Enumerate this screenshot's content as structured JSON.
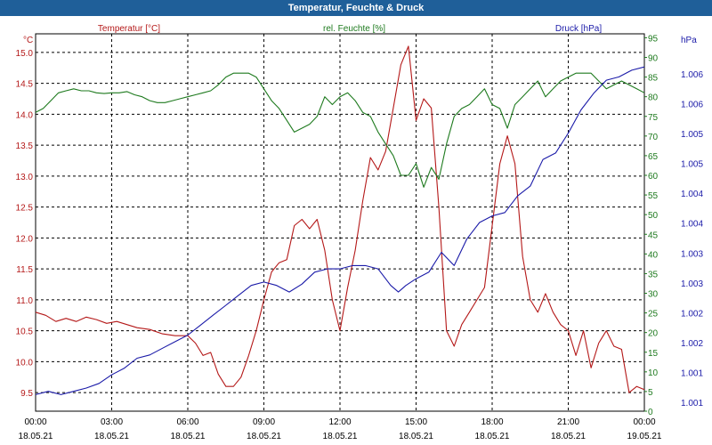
{
  "window": {
    "title": "Temperatur, Feuchte & Druck"
  },
  "colors": {
    "title_bar": "#1f5f99",
    "temperature": "#b41818",
    "humidity": "#1e7a1e",
    "pressure": "#1a1aa8"
  },
  "chart_data": {
    "type": "line",
    "title": "Temperatur, Feuchte & Druck",
    "grid": true,
    "grid_style": "dashed",
    "x_axis": {
      "ticks": [
        {
          "time": "00:00",
          "date": "18.05.21",
          "hours": 0
        },
        {
          "time": "03:00",
          "date": "18.05.21",
          "hours": 3
        },
        {
          "time": "06:00",
          "date": "18.05.21",
          "hours": 6
        },
        {
          "time": "09:00",
          "date": "18.05.21",
          "hours": 9
        },
        {
          "time": "12:00",
          "date": "18.05.21",
          "hours": 12
        },
        {
          "time": "15:00",
          "date": "18.05.21",
          "hours": 15
        },
        {
          "time": "18:00",
          "date": "18.05.21",
          "hours": 18
        },
        {
          "time": "21:00",
          "date": "18.05.21",
          "hours": 21
        },
        {
          "time": "00:00",
          "date": "19.05.21",
          "hours": 24
        }
      ],
      "range": [
        0,
        24
      ]
    },
    "axes": {
      "temperature": {
        "label": "Temperatur [°C]",
        "unit": "°C",
        "range": [
          9.2,
          15.3
        ],
        "ticks": [
          "9.5",
          "10.0",
          "10.5",
          "11.0",
          "11.5",
          "12.0",
          "12.5",
          "13.0",
          "13.5",
          "14.0",
          "14.5",
          "15.0"
        ]
      },
      "humidity": {
        "label": "rel. Feuchte [%]",
        "unit": "%",
        "range": [
          0,
          96
        ],
        "ticks": [
          "0",
          "5",
          "10",
          "15",
          "20",
          "25",
          "30",
          "35",
          "40",
          "45",
          "50",
          "55",
          "60",
          "65",
          "70",
          "75",
          "80",
          "85",
          "90",
          "95"
        ]
      },
      "pressure": {
        "label": "Druck [hPa]",
        "unit": "hPa",
        "range": [
          1000.8,
          1006.5
        ],
        "ticks": [
          "1.001",
          "1.001",
          "1.002",
          "1.002",
          "1.003",
          "1.003",
          "1.004",
          "1.004",
          "1.005",
          "1.005",
          "1.006",
          "1.006"
        ]
      }
    },
    "series": [
      {
        "name": "Temperatur [°C]",
        "axis": "temperature",
        "color": "#b41818",
        "points": [
          [
            0,
            10.8
          ],
          [
            0.4,
            10.75
          ],
          [
            0.8,
            10.65
          ],
          [
            1.2,
            10.7
          ],
          [
            1.6,
            10.65
          ],
          [
            2,
            10.72
          ],
          [
            2.4,
            10.68
          ],
          [
            2.8,
            10.62
          ],
          [
            3.2,
            10.65
          ],
          [
            3.6,
            10.6
          ],
          [
            4,
            10.55
          ],
          [
            4.5,
            10.52
          ],
          [
            5,
            10.45
          ],
          [
            5.5,
            10.42
          ],
          [
            6,
            10.42
          ],
          [
            6.3,
            10.3
          ],
          [
            6.6,
            10.1
          ],
          [
            6.9,
            10.15
          ],
          [
            7.2,
            9.8
          ],
          [
            7.5,
            9.6
          ],
          [
            7.8,
            9.6
          ],
          [
            8.1,
            9.75
          ],
          [
            8.4,
            10.1
          ],
          [
            8.7,
            10.5
          ],
          [
            9,
            11.0
          ],
          [
            9.3,
            11.45
          ],
          [
            9.6,
            11.6
          ],
          [
            9.9,
            11.65
          ],
          [
            10.2,
            12.2
          ],
          [
            10.5,
            12.3
          ],
          [
            10.8,
            12.15
          ],
          [
            11.1,
            12.3
          ],
          [
            11.4,
            11.8
          ],
          [
            11.7,
            11.0
          ],
          [
            12.0,
            10.5
          ],
          [
            12.3,
            11.2
          ],
          [
            12.6,
            11.8
          ],
          [
            12.9,
            12.6
          ],
          [
            13.2,
            13.3
          ],
          [
            13.5,
            13.1
          ],
          [
            13.8,
            13.4
          ],
          [
            14.1,
            14.1
          ],
          [
            14.4,
            14.8
          ],
          [
            14.7,
            15.1
          ],
          [
            15,
            13.9
          ],
          [
            15.3,
            14.25
          ],
          [
            15.6,
            14.1
          ],
          [
            15.9,
            12.5
          ],
          [
            16.2,
            10.5
          ],
          [
            16.5,
            10.25
          ],
          [
            16.8,
            10.6
          ],
          [
            17.1,
            10.8
          ],
          [
            17.4,
            11.0
          ],
          [
            17.7,
            11.2
          ],
          [
            18,
            12.2
          ],
          [
            18.3,
            13.2
          ],
          [
            18.6,
            13.65
          ],
          [
            18.9,
            13.2
          ],
          [
            19.2,
            11.7
          ],
          [
            19.5,
            11.0
          ],
          [
            19.8,
            10.8
          ],
          [
            20.1,
            11.1
          ],
          [
            20.4,
            10.8
          ],
          [
            20.7,
            10.6
          ],
          [
            21,
            10.5
          ],
          [
            21.3,
            10.1
          ],
          [
            21.6,
            10.5
          ],
          [
            21.9,
            9.9
          ],
          [
            22.2,
            10.3
          ],
          [
            22.5,
            10.5
          ],
          [
            22.8,
            10.25
          ],
          [
            23.1,
            10.2
          ],
          [
            23.4,
            9.5
          ],
          [
            23.7,
            9.6
          ],
          [
            24,
            9.55
          ]
        ]
      },
      {
        "name": "rel. Feuchte [%]",
        "axis": "humidity",
        "color": "#1e7a1e",
        "points": [
          [
            0,
            76
          ],
          [
            0.3,
            77
          ],
          [
            0.6,
            79
          ],
          [
            0.9,
            81
          ],
          [
            1.2,
            81.5
          ],
          [
            1.5,
            82
          ],
          [
            1.8,
            81.5
          ],
          [
            2.1,
            81.5
          ],
          [
            2.4,
            81
          ],
          [
            2.7,
            80.8
          ],
          [
            3,
            81
          ],
          [
            3.3,
            81
          ],
          [
            3.6,
            81.3
          ],
          [
            3.9,
            80.5
          ],
          [
            4.2,
            80
          ],
          [
            4.5,
            79
          ],
          [
            4.8,
            78.5
          ],
          [
            5.1,
            78.5
          ],
          [
            5.4,
            79
          ],
          [
            5.7,
            79.5
          ],
          [
            6,
            80
          ],
          [
            6.3,
            80.5
          ],
          [
            6.6,
            81
          ],
          [
            6.9,
            81.5
          ],
          [
            7.2,
            83
          ],
          [
            7.5,
            85
          ],
          [
            7.8,
            86
          ],
          [
            8.1,
            86
          ],
          [
            8.4,
            86
          ],
          [
            8.7,
            85
          ],
          [
            9,
            82
          ],
          [
            9.3,
            79
          ],
          [
            9.6,
            77
          ],
          [
            9.9,
            74
          ],
          [
            10.2,
            71
          ],
          [
            10.5,
            72
          ],
          [
            10.8,
            73
          ],
          [
            11.1,
            75
          ],
          [
            11.4,
            80
          ],
          [
            11.7,
            78
          ],
          [
            12.0,
            80
          ],
          [
            12.3,
            81
          ],
          [
            12.6,
            79
          ],
          [
            12.9,
            76
          ],
          [
            13.2,
            75
          ],
          [
            13.5,
            71
          ],
          [
            13.8,
            68
          ],
          [
            14.1,
            65
          ],
          [
            14.4,
            60
          ],
          [
            14.7,
            60
          ],
          [
            15,
            63
          ],
          [
            15.3,
            57
          ],
          [
            15.6,
            62
          ],
          [
            15.9,
            59
          ],
          [
            16.2,
            68
          ],
          [
            16.5,
            75
          ],
          [
            16.8,
            77
          ],
          [
            17.1,
            78
          ],
          [
            17.4,
            80
          ],
          [
            17.7,
            82
          ],
          [
            18,
            78
          ],
          [
            18.3,
            77
          ],
          [
            18.6,
            72
          ],
          [
            18.9,
            78
          ],
          [
            19.2,
            80
          ],
          [
            19.5,
            82
          ],
          [
            19.8,
            84
          ],
          [
            20.1,
            80
          ],
          [
            20.4,
            82
          ],
          [
            20.7,
            84
          ],
          [
            21,
            85
          ],
          [
            21.3,
            86
          ],
          [
            21.6,
            86
          ],
          [
            21.9,
            86
          ],
          [
            22.2,
            84
          ],
          [
            22.5,
            82
          ],
          [
            22.8,
            83
          ],
          [
            23.1,
            84
          ],
          [
            23.4,
            83
          ],
          [
            23.7,
            82
          ],
          [
            24,
            81
          ]
        ]
      },
      {
        "name": "Druck [hPa]",
        "axis": "pressure",
        "color": "#1a1aa8",
        "points": [
          [
            0,
            1001.05
          ],
          [
            0.5,
            1001.1
          ],
          [
            1,
            1001.05
          ],
          [
            1.5,
            1001.1
          ],
          [
            2,
            1001.15
          ],
          [
            2.5,
            1001.22
          ],
          [
            3,
            1001.35
          ],
          [
            3.5,
            1001.45
          ],
          [
            4,
            1001.6
          ],
          [
            4.5,
            1001.65
          ],
          [
            5,
            1001.75
          ],
          [
            5.5,
            1001.85
          ],
          [
            6,
            1001.95
          ],
          [
            6.5,
            1002.1
          ],
          [
            7,
            1002.25
          ],
          [
            7.5,
            1002.4
          ],
          [
            8,
            1002.55
          ],
          [
            8.5,
            1002.7
          ],
          [
            9,
            1002.75
          ],
          [
            9.5,
            1002.7
          ],
          [
            10,
            1002.6
          ],
          [
            10.5,
            1002.72
          ],
          [
            11,
            1002.9
          ],
          [
            11.5,
            1002.95
          ],
          [
            12,
            1002.95
          ],
          [
            12.5,
            1003.0
          ],
          [
            13,
            1003.0
          ],
          [
            13.5,
            1002.95
          ],
          [
            14,
            1002.7
          ],
          [
            14.3,
            1002.6
          ],
          [
            14.6,
            1002.7
          ],
          [
            15,
            1002.8
          ],
          [
            15.5,
            1002.9
          ],
          [
            16,
            1003.2
          ],
          [
            16.5,
            1003.0
          ],
          [
            17,
            1003.4
          ],
          [
            17.5,
            1003.65
          ],
          [
            18,
            1003.75
          ],
          [
            18.5,
            1003.8
          ],
          [
            19,
            1004.05
          ],
          [
            19.5,
            1004.2
          ],
          [
            20,
            1004.6
          ],
          [
            20.5,
            1004.7
          ],
          [
            21,
            1005.0
          ],
          [
            21.5,
            1005.35
          ],
          [
            22,
            1005.6
          ],
          [
            22.5,
            1005.8
          ],
          [
            23,
            1005.85
          ],
          [
            23.5,
            1005.95
          ],
          [
            24,
            1006.0
          ]
        ]
      }
    ]
  }
}
